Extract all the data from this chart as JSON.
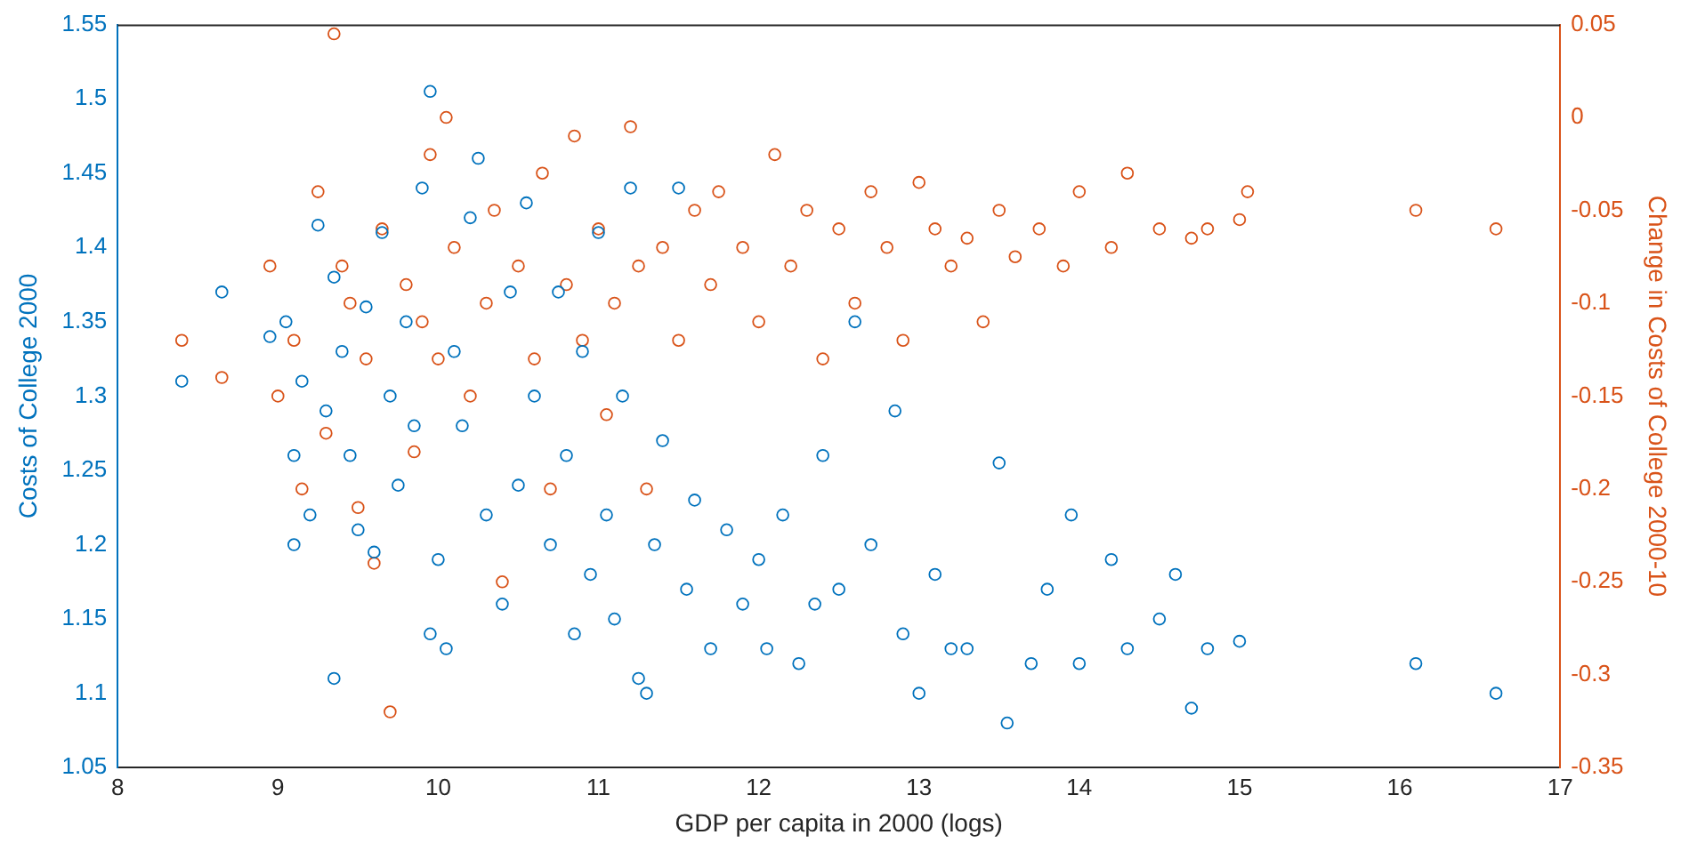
{
  "chart_data": {
    "type": "scatter",
    "xlabel": "GDP per capita in 2000 (logs)",
    "ylabel": "Costs of College 2000",
    "y2label": "Change in Costs of College 2000-10",
    "marker": "circle",
    "grid": false,
    "legend": false,
    "xlim": [
      8,
      17
    ],
    "xticks": [
      8,
      9,
      10,
      11,
      12,
      13,
      14,
      15,
      16,
      17
    ],
    "ylim": [
      1.05,
      1.55
    ],
    "yticks": [
      1.05,
      1.1,
      1.15,
      1.2,
      1.25,
      1.3,
      1.35,
      1.4,
      1.45,
      1.5,
      1.55
    ],
    "y2lim": [
      -0.35,
      0.05
    ],
    "y2ticks": [
      -0.35,
      -0.3,
      -0.25,
      -0.2,
      -0.15,
      -0.1,
      -0.05,
      0,
      0.05
    ],
    "series": [
      {
        "color": "#0072bd",
        "x": [
          8.4,
          8.65,
          8.95,
          9.05,
          9.1,
          9.1,
          9.15,
          9.2,
          9.25,
          9.3,
          9.35,
          9.35,
          9.4,
          9.45,
          9.5,
          9.55,
          9.6,
          9.65,
          9.7,
          9.75,
          9.8,
          9.85,
          9.9,
          9.95,
          9.95,
          10.0,
          10.05,
          10.1,
          10.15,
          10.2,
          10.25,
          10.3,
          10.4,
          10.45,
          10.5,
          10.55,
          10.6,
          10.7,
          10.75,
          10.8,
          10.85,
          10.9,
          10.95,
          11.0,
          11.05,
          11.1,
          11.15,
          11.2,
          11.25,
          11.3,
          11.35,
          11.4,
          11.5,
          11.55,
          11.6,
          11.7,
          11.8,
          11.9,
          12.0,
          12.05,
          12.15,
          12.25,
          12.35,
          12.4,
          12.5,
          12.6,
          12.7,
          12.85,
          12.9,
          13.0,
          13.1,
          13.2,
          13.3,
          13.5,
          13.55,
          13.7,
          13.8,
          13.95,
          14.0,
          14.2,
          14.3,
          14.5,
          14.6,
          14.7,
          14.8,
          15.0,
          16.1,
          16.6
        ],
        "values": [
          1.31,
          1.37,
          1.34,
          1.35,
          1.26,
          1.2,
          1.31,
          1.22,
          1.415,
          1.29,
          1.11,
          1.38,
          1.33,
          1.26,
          1.21,
          1.36,
          1.195,
          1.41,
          1.3,
          1.24,
          1.35,
          1.28,
          1.44,
          1.505,
          1.14,
          1.19,
          1.13,
          1.33,
          1.28,
          1.42,
          1.46,
          1.22,
          1.16,
          1.37,
          1.24,
          1.43,
          1.3,
          1.2,
          1.37,
          1.26,
          1.14,
          1.33,
          1.18,
          1.41,
          1.22,
          1.15,
          1.3,
          1.44,
          1.11,
          1.1,
          1.2,
          1.27,
          1.44,
          1.17,
          1.23,
          1.13,
          1.21,
          1.16,
          1.19,
          1.13,
          1.22,
          1.12,
          1.16,
          1.26,
          1.17,
          1.35,
          1.2,
          1.29,
          1.14,
          1.1,
          1.18,
          1.13,
          1.13,
          1.255,
          1.08,
          1.12,
          1.17,
          1.22,
          1.12,
          1.19,
          1.13,
          1.15,
          1.18,
          1.09,
          1.13,
          1.135,
          1.12,
          1.1
        ]
      },
      {
        "color": "#d95319",
        "axis": "y2",
        "x": [
          8.4,
          8.65,
          8.95,
          9.0,
          9.1,
          9.15,
          9.25,
          9.3,
          9.35,
          9.4,
          9.45,
          9.5,
          9.55,
          9.6,
          9.65,
          9.7,
          9.8,
          9.85,
          9.9,
          9.95,
          10.0,
          10.05,
          10.1,
          10.2,
          10.3,
          10.35,
          10.4,
          10.5,
          10.6,
          10.65,
          10.7,
          10.8,
          10.85,
          10.9,
          11.0,
          11.05,
          11.1,
          11.2,
          11.25,
          11.3,
          11.4,
          11.5,
          11.6,
          11.7,
          11.75,
          11.9,
          12.0,
          12.1,
          12.2,
          12.3,
          12.4,
          12.5,
          12.6,
          12.7,
          12.8,
          12.9,
          13.0,
          13.1,
          13.2,
          13.3,
          13.4,
          13.5,
          13.6,
          13.75,
          13.9,
          14.0,
          14.2,
          14.3,
          14.5,
          14.7,
          14.8,
          15.0,
          15.05,
          16.1,
          16.6
        ],
        "values": [
          -0.12,
          -0.14,
          -0.08,
          -0.15,
          -0.12,
          -0.2,
          -0.04,
          -0.17,
          0.045,
          -0.08,
          -0.1,
          -0.21,
          -0.13,
          -0.24,
          -0.06,
          -0.32,
          -0.09,
          -0.18,
          -0.11,
          -0.02,
          -0.13,
          0.0,
          -0.07,
          -0.15,
          -0.1,
          -0.05,
          -0.25,
          -0.08,
          -0.13,
          -0.03,
          -0.2,
          -0.09,
          -0.01,
          -0.12,
          -0.06,
          -0.16,
          -0.1,
          -0.005,
          -0.08,
          -0.2,
          -0.07,
          -0.12,
          -0.05,
          -0.09,
          -0.04,
          -0.07,
          -0.11,
          -0.02,
          -0.08,
          -0.05,
          -0.13,
          -0.06,
          -0.1,
          -0.04,
          -0.07,
          -0.12,
          -0.035,
          -0.06,
          -0.08,
          -0.065,
          -0.11,
          -0.05,
          -0.075,
          -0.06,
          -0.08,
          -0.04,
          -0.07,
          -0.03,
          -0.06,
          -0.065,
          -0.06,
          -0.055,
          -0.04,
          -0.05,
          -0.06
        ]
      }
    ]
  }
}
